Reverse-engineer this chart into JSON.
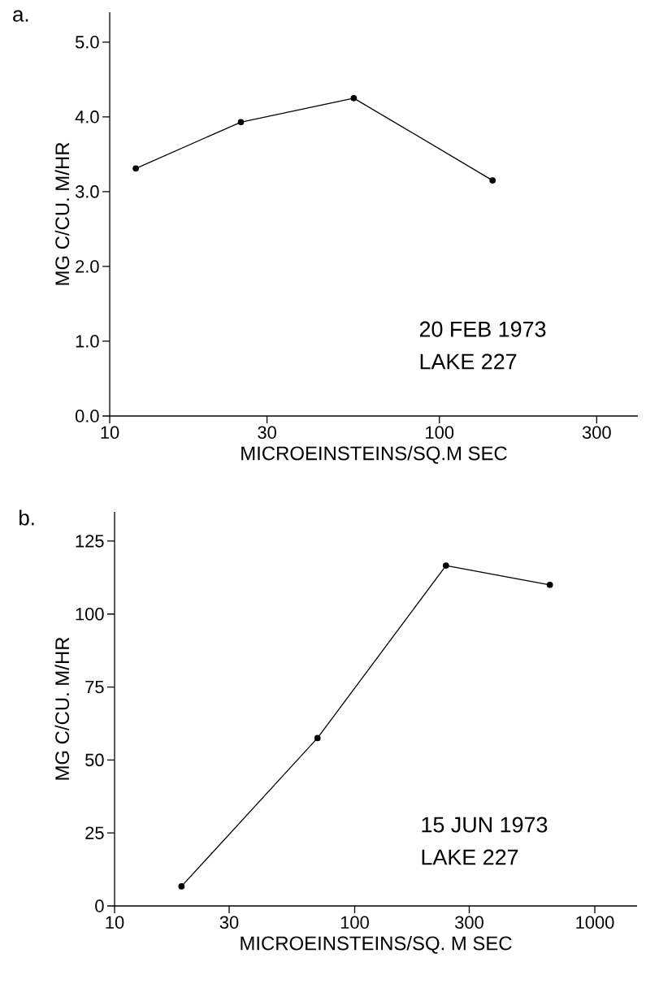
{
  "chart_data": [
    {
      "type": "line",
      "title": "a.",
      "xlabel": "MICROEINSTEINS/SQ.M SEC",
      "ylabel": "MG C/CU. M/HR",
      "log": "x",
      "annotations": [
        "20 FEB 1973",
        "LAKE 227"
      ],
      "x": [
        12,
        25,
        55,
        145
      ],
      "series": [
        {
          "color": "#000000",
          "values": [
            3.31,
            3.93,
            4.25,
            3.15
          ]
        }
      ],
      "xlim": [
        10,
        400
      ],
      "xticks": [
        10,
        30,
        100,
        300
      ],
      "ylim": [
        0,
        5.4
      ],
      "yticks": [
        {
          "value": 0,
          "label": "0.0"
        },
        {
          "value": 1,
          "label": "1.0"
        },
        {
          "value": 2,
          "label": "2.0"
        },
        {
          "value": 3,
          "label": "3.0"
        },
        {
          "value": 4,
          "label": "4.0"
        },
        {
          "value": 5,
          "label": "5.0"
        }
      ],
      "grid": false,
      "marker": "circle",
      "line_style": "solid"
    },
    {
      "type": "line",
      "title": "b.",
      "xlabel": "MICROEINSTEINS/SQ. M SEC",
      "ylabel": "MG C/CU. M/HR",
      "log": "x",
      "annotations": [
        "15 JUN 1973",
        "LAKE 227"
      ],
      "x": [
        19,
        70,
        240,
        650
      ],
      "series": [
        {
          "color": "#000000",
          "values": [
            6.7,
            57.5,
            116.6,
            110
          ]
        }
      ],
      "xlim": [
        10,
        1500
      ],
      "xticks": [
        10,
        30,
        100,
        300,
        1000
      ],
      "ylim": [
        0,
        135
      ],
      "yticks": [
        0,
        25,
        50,
        75,
        100,
        125
      ],
      "grid": false,
      "marker": "circle",
      "line_style": "solid"
    }
  ]
}
